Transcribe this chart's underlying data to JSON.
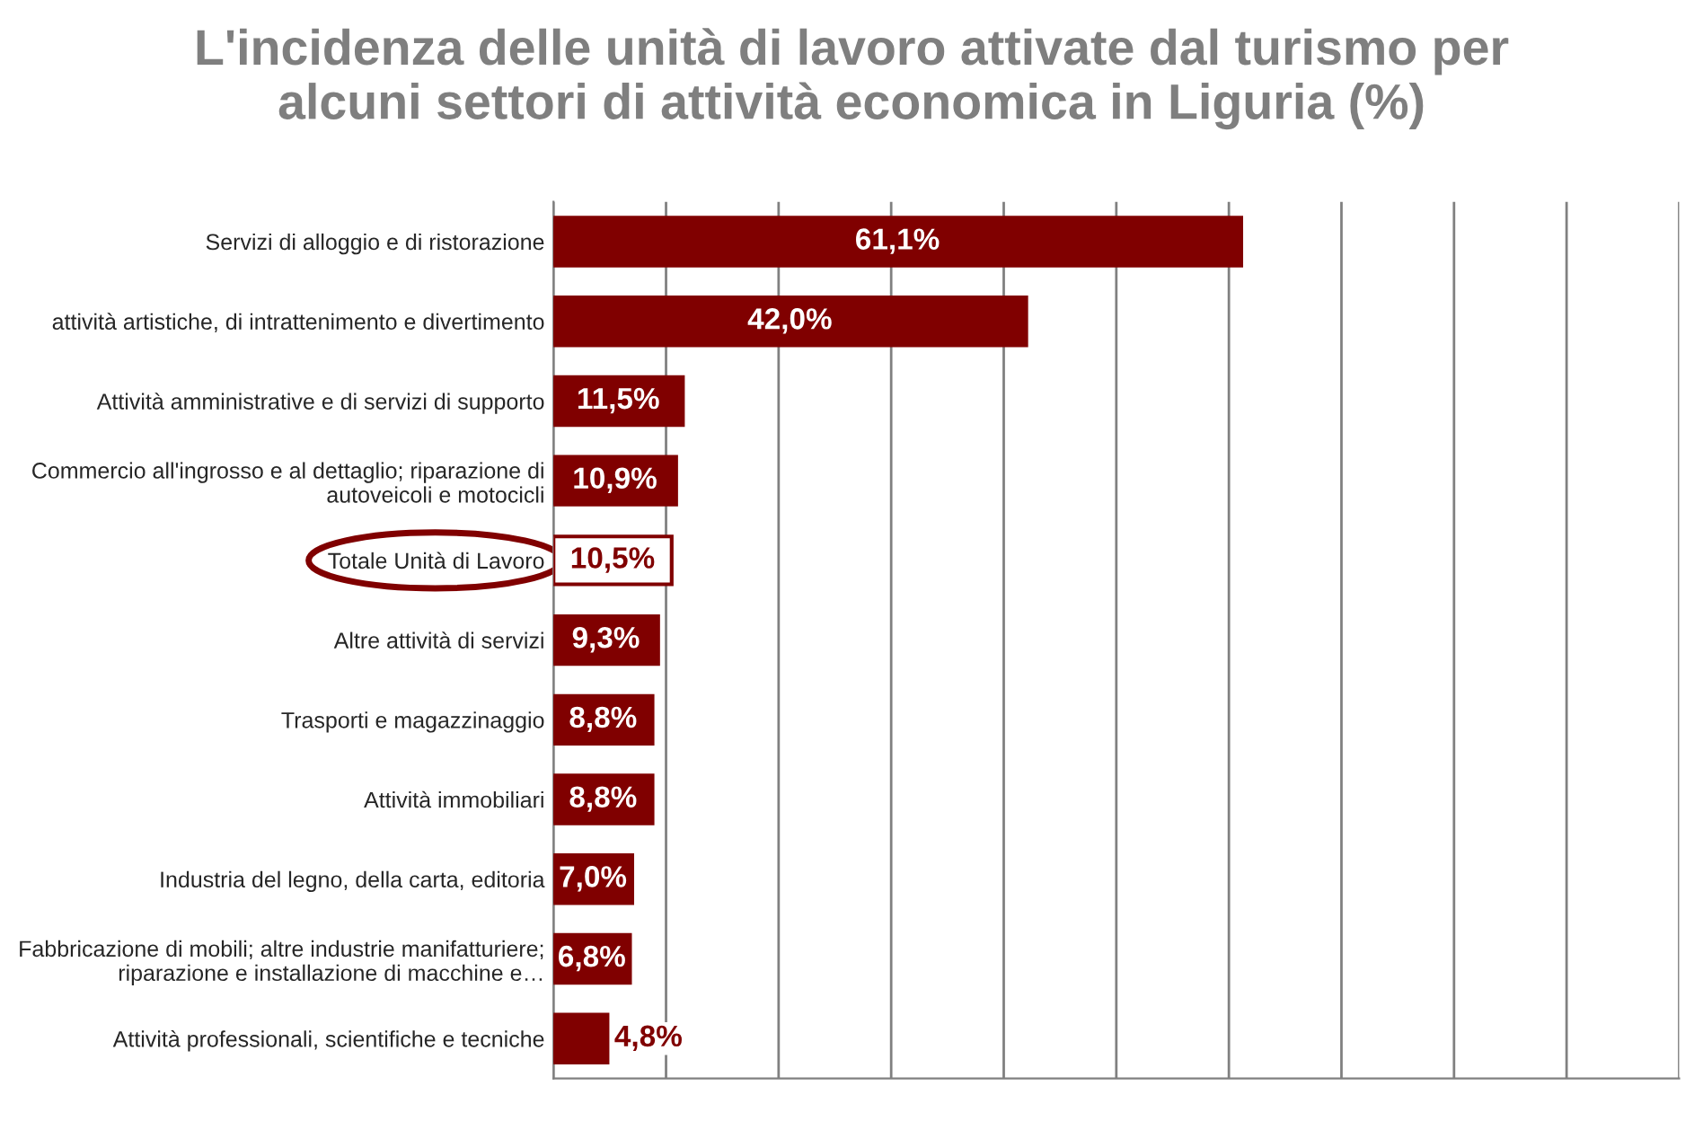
{
  "chart_data": {
    "type": "bar",
    "orientation": "horizontal",
    "title": "L'incidenza delle unità di lavoro attivate dal turismo per\nalcuni settori di attività economica in Liguria (%)",
    "categories": [
      "Servizi di alloggio e di ristorazione",
      "attività artistiche, di intrattenimento e divertimento",
      "Attività amministrative e di servizi di supporto",
      "Commercio all'ingrosso e al dettaglio; riparazione di\nautoveicoli e motocicli",
      "Totale Unità di Lavoro",
      "Altre attività di servizi",
      "Trasporti e magazzinaggio",
      "Attività immobiliari",
      "Industria del legno, della carta, editoria",
      "Fabbricazione di mobili; altre industrie manifatturiere;\nriparazione e installazione di macchine e…",
      "Attività professionali, scientifiche e tecniche"
    ],
    "values": [
      61.1,
      42.0,
      11.5,
      10.9,
      10.5,
      9.3,
      8.8,
      8.8,
      7.0,
      6.8,
      4.8
    ],
    "value_labels": [
      "61,1%",
      "42,0%",
      "11,5%",
      "10,9%",
      "10,5%",
      "9,3%",
      "8,8%",
      "8,8%",
      "7,0%",
      "6,8%",
      "4,8%"
    ],
    "colors": [
      "#800000",
      "#800000",
      "#800000",
      "#800000",
      "#ffffff",
      "#800000",
      "#800000",
      "#800000",
      "#800000",
      "#800000",
      "#800000"
    ],
    "xlim": [
      0,
      100
    ],
    "xticks": [
      {
        "value": 0,
        "label": null
      },
      {
        "value": 10,
        "label": null
      },
      {
        "value": 20,
        "label": null
      },
      {
        "value": 30,
        "label": null
      },
      {
        "value": 40,
        "label": null
      },
      {
        "value": 50,
        "label": null
      },
      {
        "value": 60,
        "label": null
      },
      {
        "value": 70,
        "label": null
      },
      {
        "value": 80,
        "label": null
      },
      {
        "value": 90,
        "label": null
      },
      {
        "value": 100,
        "label": null
      }
    ],
    "grid": "x"
  }
}
